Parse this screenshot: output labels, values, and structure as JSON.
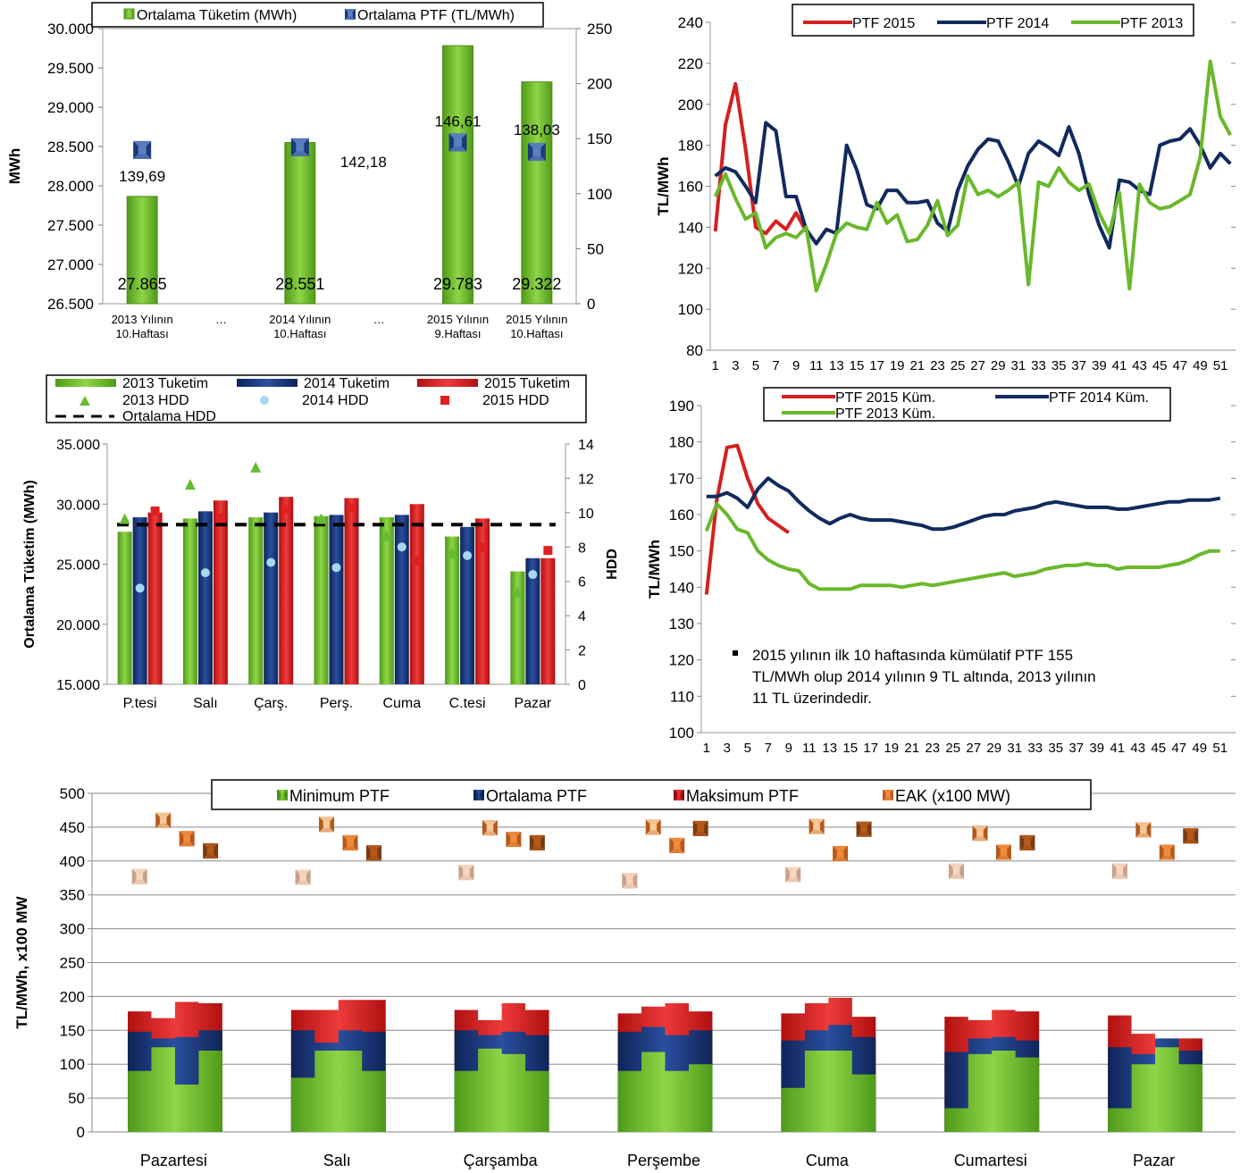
{
  "chart_data": [
    {
      "type": "bar",
      "legend": [
        "Ortalama Tüketim (MWh)",
        "Ortalama PTF (TL/MWh)"
      ],
      "ylabel": "MWh",
      "categories": [
        [
          "2013 Yılının",
          "10.Haftası"
        ],
        [
          "…"
        ],
        [
          "2014 Yılının",
          "10.Haftası"
        ],
        [
          "…"
        ],
        [
          "2015 Yılının",
          "9.Haftası"
        ],
        [
          "2015 Yılının",
          "10.Haftası"
        ]
      ],
      "bars": [
        {
          "cat": 0,
          "value": 27865,
          "label": "27.865"
        },
        {
          "cat": 2,
          "value": 28551,
          "label": "28.551"
        },
        {
          "cat": 4,
          "value": 29783,
          "label": "29.783"
        },
        {
          "cat": 5,
          "value": 29322,
          "label": "29.322"
        }
      ],
      "points": [
        {
          "cat": 0,
          "value": 139.69,
          "label": "139,69"
        },
        {
          "cat": 2,
          "value": 142.18,
          "label": "142,18"
        },
        {
          "cat": 4,
          "value": 146.61,
          "label": "146,61"
        },
        {
          "cat": 5,
          "value": 138.03,
          "label": "138,03"
        }
      ],
      "yleft": {
        "min": 26500,
        "max": 30000,
        "step": 500,
        "ticks": [
          "26.500",
          "27.000",
          "27.500",
          "28.000",
          "28.500",
          "29.000",
          "29.500",
          "30.000"
        ]
      },
      "yright": {
        "min": 0,
        "max": 250,
        "step": 50,
        "ticks": [
          "0",
          "50",
          "100",
          "150",
          "200",
          "250"
        ]
      }
    },
    {
      "type": "line",
      "ylabel": "TL/MWh",
      "ylim": [
        80,
        240
      ],
      "yticks": [
        "80",
        "100",
        "120",
        "140",
        "160",
        "180",
        "200",
        "220",
        "240"
      ],
      "xticks": [
        "1",
        "3",
        "5",
        "7",
        "9",
        "11",
        "13",
        "15",
        "17",
        "19",
        "21",
        "23",
        "25",
        "27",
        "29",
        "31",
        "33",
        "35",
        "37",
        "39",
        "41",
        "43",
        "45",
        "47",
        "49",
        "51"
      ],
      "series": [
        {
          "name": "PTF 2015",
          "color": "#d42020",
          "values": [
            138,
            190,
            210,
            178,
            140,
            137,
            143,
            139,
            147,
            138
          ]
        },
        {
          "name": "PTF 2014",
          "color": "#112a5e",
          "values": [
            165,
            169,
            167,
            160,
            152,
            191,
            187,
            155,
            155,
            139,
            132,
            139,
            137,
            180,
            168,
            151,
            149,
            158,
            158,
            152,
            152,
            153,
            142,
            138,
            158,
            170,
            178,
            183,
            182,
            172,
            160,
            176,
            182,
            179,
            175,
            189,
            176,
            156,
            141,
            130,
            163,
            162,
            158,
            156,
            180,
            182,
            183,
            188,
            180,
            169,
            176,
            171
          ]
        },
        {
          "name": "PTF 2013",
          "color": "#6ab82b",
          "values": [
            155,
            166,
            154,
            144,
            147,
            130,
            135,
            137,
            135,
            140,
            109,
            122,
            137,
            142,
            140,
            139,
            152,
            142,
            146,
            133,
            134,
            141,
            153,
            136,
            141,
            165,
            156,
            158,
            155,
            158,
            162,
            112,
            162,
            160,
            169,
            162,
            158,
            161,
            147,
            137,
            157,
            110,
            161,
            152,
            149,
            150,
            153,
            156,
            174,
            221,
            194,
            185
          ]
        }
      ]
    },
    {
      "type": "bar",
      "legend": [
        "2013 Tuketim",
        "2014 Tuketim",
        "2015 Tuketim",
        "2013 HDD",
        "2014 HDD",
        "2015 HDD",
        "Ortalama HDD"
      ],
      "ylabel": "Ortalama Tüketim (MWh)",
      "y2label": "HDD",
      "categories": [
        "P.tesi",
        "Salı",
        "Çarş.",
        "Perş.",
        "Cuma",
        "C.tesi",
        "Pazar"
      ],
      "series": [
        {
          "name": "2013 Tuketim",
          "color": "#6ab82b",
          "values": [
            27700,
            28800,
            28900,
            29000,
            28900,
            27300,
            24400
          ]
        },
        {
          "name": "2014 Tuketim",
          "color": "#1c3a7a",
          "values": [
            28900,
            29400,
            29300,
            29100,
            29100,
            28100,
            25500
          ]
        },
        {
          "name": "2015 Tuketim",
          "color": "#d42020",
          "values": [
            29300,
            30300,
            30600,
            30500,
            30000,
            28800,
            25500
          ]
        }
      ],
      "hdd": [
        {
          "name": "2013 HDD",
          "values": [
            9.6,
            11.6,
            12.6,
            9.6,
            8.6,
            7.6,
            5.3
          ]
        },
        {
          "name": "2014 HDD",
          "values": [
            5.6,
            6.5,
            7.1,
            6.8,
            8.0,
            7.5,
            6.4
          ]
        },
        {
          "name": "2015 HDD",
          "values": [
            10.1,
            9.7,
            10.2,
            10.3,
            7.2,
            8.0,
            7.8
          ]
        }
      ],
      "avg_hdd": 9.3,
      "yleft": {
        "min": 15000,
        "max": 35000,
        "ticks": [
          "15.000",
          "20.000",
          "25.000",
          "30.000",
          "35.000"
        ]
      },
      "yright": {
        "min": 0,
        "max": 14,
        "ticks": [
          "0",
          "2",
          "4",
          "6",
          "8",
          "10",
          "12",
          "14"
        ]
      }
    },
    {
      "type": "line",
      "ylabel": "TL/MWh",
      "ylim": [
        100,
        190
      ],
      "yticks": [
        "100",
        "110",
        "120",
        "130",
        "140",
        "150",
        "160",
        "170",
        "180",
        "190"
      ],
      "xticks": [
        "1",
        "3",
        "5",
        "7",
        "9",
        "11",
        "13",
        "15",
        "17",
        "19",
        "21",
        "23",
        "25",
        "27",
        "29",
        "31",
        "33",
        "35",
        "37",
        "39",
        "41",
        "43",
        "45",
        "47",
        "49",
        "51"
      ],
      "series": [
        {
          "name": "PTF 2015 Küm.",
          "color": "#d42020",
          "values": [
            138,
            164,
            178.5,
            179,
            170,
            163,
            159,
            157,
            155
          ]
        },
        {
          "name": "PTF 2014 Küm.",
          "color": "#112a5e",
          "values": [
            165,
            165,
            166,
            164.5,
            162,
            167,
            170,
            168,
            166.5,
            163.5,
            161,
            159,
            157.5,
            159,
            160,
            159,
            158.5,
            158.5,
            158.5,
            158,
            157.5,
            157,
            156,
            156,
            156.5,
            157.5,
            158.5,
            159.5,
            160,
            160,
            161,
            161.5,
            162,
            163,
            163.5,
            163,
            162.5,
            162,
            162,
            162,
            161.5,
            161.5,
            162,
            162.5,
            163,
            163.5,
            163.5,
            164,
            164,
            164,
            164.5
          ]
        },
        {
          "name": "PTF 2013 Küm.",
          "color": "#6ab82b",
          "values": [
            155.5,
            163,
            160,
            156,
            155,
            150,
            147.5,
            146,
            145,
            144.5,
            141,
            139.5,
            139.5,
            139.5,
            139.5,
            140.5,
            140.5,
            140.5,
            140.5,
            140,
            140.5,
            141,
            140.5,
            141,
            141.5,
            142,
            142.5,
            143,
            143.5,
            144,
            143,
            143.5,
            144,
            145,
            145.5,
            146,
            146,
            146.5,
            146,
            146,
            145,
            145.5,
            145.5,
            145.5,
            145.5,
            146,
            146.5,
            147.5,
            149,
            150,
            150
          ]
        }
      ],
      "annotation": [
        "2015 yılının ilk 10 haftasında kümülatif PTF 155",
        "TL/MWh olup 2014 yılının 9 TL altında, 2013 yılının",
        "11 TL üzerindedir."
      ]
    },
    {
      "type": "area",
      "legend": [
        "Minimum PTF",
        "Ortalama PTF",
        "Maksimum PTF",
        "EAK (x100 MW)"
      ],
      "ylabel": "TL/MWh, x100 MW",
      "ylim": [
        0,
        500
      ],
      "yticks": [
        "0",
        "50",
        "100",
        "150",
        "200",
        "250",
        "300",
        "350",
        "400",
        "450",
        "500"
      ],
      "categories": [
        "Pazartesi",
        "Salı",
        "Çarşamba",
        "Perşembe",
        "Cuma",
        "Cumartesi",
        "Pazar"
      ],
      "colors": {
        "min": "#6ab82b",
        "avg": "#1c3a7a",
        "max": "#d42020"
      },
      "days": [
        {
          "min": [
            90,
            125,
            70,
            120
          ],
          "avg": [
            148,
            138,
            140,
            150
          ],
          "max": [
            178,
            168,
            192,
            190
          ],
          "eak": [
            377,
            460,
            433,
            415
          ]
        },
        {
          "min": [
            80,
            120,
            120,
            90
          ],
          "avg": [
            150,
            132,
            150,
            148
          ],
          "max": [
            180,
            180,
            195,
            195
          ],
          "eak": [
            376,
            454,
            427,
            412
          ]
        },
        {
          "min": [
            90,
            123,
            115,
            90
          ],
          "avg": [
            150,
            143,
            148,
            143
          ],
          "max": [
            180,
            165,
            190,
            180
          ],
          "eak": [
            383,
            449,
            432,
            427
          ]
        },
        {
          "min": [
            90,
            118,
            90,
            100
          ],
          "avg": [
            148,
            155,
            143,
            150
          ],
          "max": [
            175,
            185,
            190,
            178
          ],
          "eak": [
            371,
            450,
            423,
            448
          ]
        },
        {
          "min": [
            65,
            120,
            120,
            85
          ],
          "avg": [
            135,
            150,
            158,
            140
          ],
          "max": [
            175,
            190,
            198,
            170
          ],
          "eak": [
            380,
            451,
            411,
            447
          ]
        },
        {
          "min": [
            35,
            115,
            120,
            110
          ],
          "avg": [
            118,
            138,
            140,
            135
          ],
          "max": [
            170,
            165,
            180,
            178
          ],
          "eak": [
            385,
            441,
            413,
            427
          ]
        },
        {
          "min": [
            35,
            100,
            125,
            100
          ],
          "avg": [
            125,
            115,
            138,
            120
          ],
          "max": [
            172,
            145,
            135,
            138
          ],
          "eak": [
            385,
            446,
            413,
            437
          ]
        }
      ]
    }
  ]
}
